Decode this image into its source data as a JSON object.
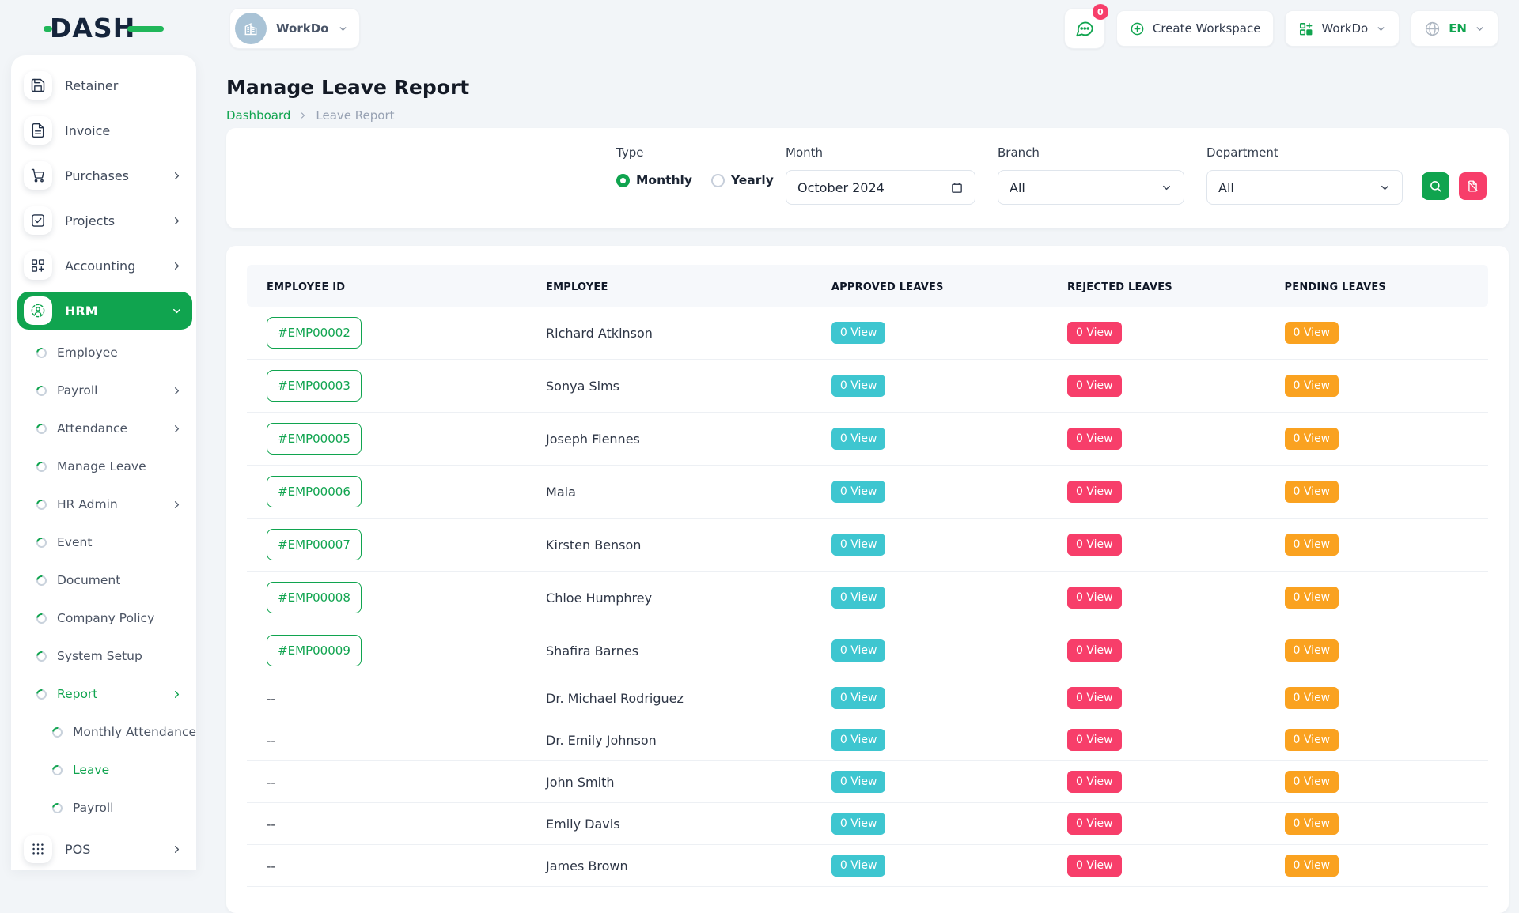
{
  "brand": {
    "logo_text": "DASH"
  },
  "topbar": {
    "workspace_chip_label": "WorkDo",
    "messages_badge": "0",
    "create_workspace_label": "Create Workspace",
    "workspace_menu_label": "WorkDo",
    "language": "EN"
  },
  "sidebar": {
    "items": [
      {
        "label": "Retainer",
        "level": 0,
        "icon": "retainer-icon"
      },
      {
        "label": "Invoice",
        "level": 0,
        "icon": "invoice-icon"
      },
      {
        "label": "Purchases",
        "level": 0,
        "icon": "purchases-icon",
        "chevron": "right"
      },
      {
        "label": "Projects",
        "level": 0,
        "icon": "projects-icon",
        "chevron": "right"
      },
      {
        "label": "Accounting",
        "level": 0,
        "icon": "accounting-icon",
        "chevron": "right"
      },
      {
        "label": "HRM",
        "level": 0,
        "icon": "hrm-icon",
        "chevron": "down",
        "active": true
      },
      {
        "label": "Employee",
        "level": 1
      },
      {
        "label": "Payroll",
        "level": 1,
        "chevron": "right"
      },
      {
        "label": "Attendance",
        "level": 1,
        "chevron": "right"
      },
      {
        "label": "Manage Leave",
        "level": 1
      },
      {
        "label": "HR Admin",
        "level": 1,
        "chevron": "right"
      },
      {
        "label": "Event",
        "level": 1
      },
      {
        "label": "Document",
        "level": 1
      },
      {
        "label": "Company Policy",
        "level": 1
      },
      {
        "label": "System Setup",
        "level": 1
      },
      {
        "label": "Report",
        "level": 1,
        "chevron": "right",
        "active": true
      },
      {
        "label": "Monthly Attendance",
        "level": 2
      },
      {
        "label": "Leave",
        "level": 2,
        "active": true
      },
      {
        "label": "Payroll",
        "level": 2
      },
      {
        "label": "POS",
        "level": 0,
        "icon": "pos-icon",
        "chevron": "right"
      }
    ]
  },
  "page": {
    "title": "Manage Leave Report",
    "breadcrumb_home": "Dashboard",
    "breadcrumb_current": "Leave Report"
  },
  "filters": {
    "type_label": "Type",
    "monthly_label": "Monthly",
    "yearly_label": "Yearly",
    "monthly_selected": true,
    "month_label": "Month",
    "month_value": "October 2024",
    "branch_label": "Branch",
    "branch_value": "All",
    "department_label": "Department",
    "department_value": "All"
  },
  "table": {
    "columns": [
      "EMPLOYEE ID",
      "EMPLOYEE",
      "APPROVED LEAVES",
      "REJECTED LEAVES",
      "PENDING LEAVES"
    ],
    "rows": [
      {
        "id": "#EMP00002",
        "name": "Richard Atkinson",
        "approved": "0 View",
        "rejected": "0 View",
        "pending": "0 View"
      },
      {
        "id": "#EMP00003",
        "name": "Sonya Sims",
        "approved": "0 View",
        "rejected": "0 View",
        "pending": "0 View"
      },
      {
        "id": "#EMP00005",
        "name": "Joseph Fiennes",
        "approved": "0 View",
        "rejected": "0 View",
        "pending": "0 View"
      },
      {
        "id": "#EMP00006",
        "name": "Maia",
        "approved": "0 View",
        "rejected": "0 View",
        "pending": "0 View"
      },
      {
        "id": "#EMP00007",
        "name": "Kirsten Benson",
        "approved": "0 View",
        "rejected": "0 View",
        "pending": "0 View"
      },
      {
        "id": "#EMP00008",
        "name": "Chloe Humphrey",
        "approved": "0 View",
        "rejected": "0 View",
        "pending": "0 View"
      },
      {
        "id": "#EMP00009",
        "name": "Shafira Barnes",
        "approved": "0 View",
        "rejected": "0 View",
        "pending": "0 View"
      },
      {
        "id": "--",
        "name": "Dr. Michael Rodriguez",
        "approved": "0 View",
        "rejected": "0 View",
        "pending": "0 View"
      },
      {
        "id": "--",
        "name": "Dr. Emily Johnson",
        "approved": "0 View",
        "rejected": "0 View",
        "pending": "0 View"
      },
      {
        "id": "--",
        "name": "John Smith",
        "approved": "0 View",
        "rejected": "0 View",
        "pending": "0 View"
      },
      {
        "id": "--",
        "name": "Emily Davis",
        "approved": "0 View",
        "rejected": "0 View",
        "pending": "0 View"
      },
      {
        "id": "--",
        "name": "James Brown",
        "approved": "0 View",
        "rejected": "0 View",
        "pending": "0 View"
      }
    ]
  },
  "colors": {
    "primary_green": "#10A44F",
    "badge_teal": "#3EC6D0",
    "badge_pink": "#F73E6A",
    "badge_orange": "#FAA220",
    "logo_navy": "#15243B"
  }
}
